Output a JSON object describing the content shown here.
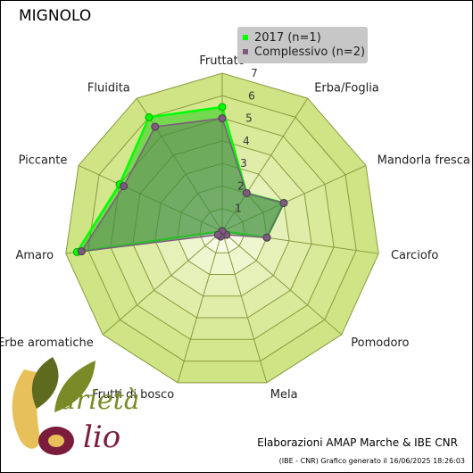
{
  "title": "MIGNOLO",
  "legend": [
    {
      "label": "2017 (n=1)",
      "color": "#00ff00"
    },
    {
      "label": "Complessivo (n=2)",
      "color": "#7f5a7f"
    }
  ],
  "chart_data": {
    "type": "radar",
    "axes": [
      "Fruttato",
      "Erba/Foglia",
      "Mandorla fresca",
      "Carciofo",
      "Pomodoro",
      "Mela",
      "Frutti di bosco",
      "Erbe aromatiche",
      "Amaro",
      "Piccante",
      "Fluidita"
    ],
    "rlim": [
      0,
      7
    ],
    "ticks": [
      1,
      2,
      3,
      4,
      5,
      6,
      7
    ],
    "tick_labels": [
      "1",
      "2",
      "3",
      "4",
      "5",
      "6",
      "7"
    ],
    "series": [
      {
        "name": "2017 (n=1)",
        "values": [
          5.5,
          2,
          3,
          2,
          0,
          0,
          0,
          0,
          6.5,
          5,
          6
        ]
      },
      {
        "name": "Complessivo (n=2)",
        "values": [
          5,
          2,
          3,
          2,
          0.25,
          0,
          0.25,
          0.25,
          6.3,
          4.8,
          5.5
        ]
      }
    ]
  },
  "credit": "Elaborazioni AMAP Marche & IBE CNR",
  "generated": "(IBE - CNR) Grafico generato il 16/06/2025 18:26:03",
  "logo": {
    "text_a": "arietà",
    "text_b": "lio"
  }
}
